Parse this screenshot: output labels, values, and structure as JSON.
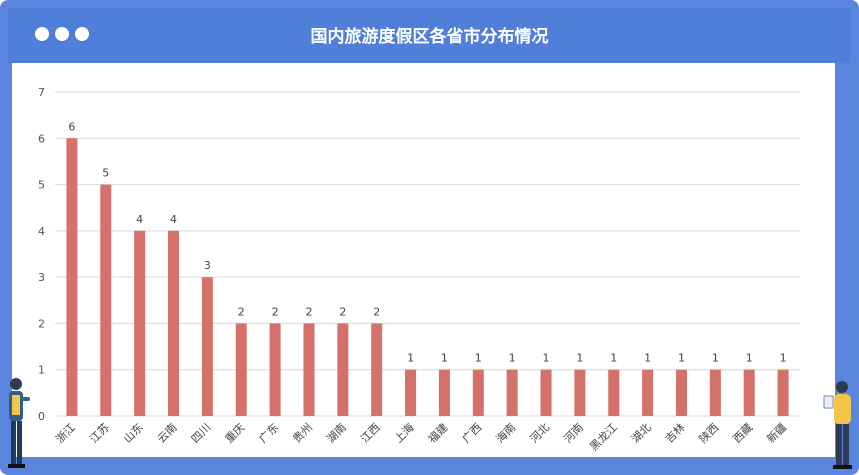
{
  "window": {
    "title": "国内旅游度假区各省市分布情况"
  },
  "chart_data": {
    "type": "bar",
    "categories": [
      "浙江",
      "江苏",
      "山东",
      "云南",
      "四川",
      "重庆",
      "广东",
      "贵州",
      "湖南",
      "江西",
      "上海",
      "福建",
      "广西",
      "海南",
      "河北",
      "河南",
      "黑龙江",
      "湖北",
      "吉林",
      "陕西",
      "西藏",
      "新疆"
    ],
    "values": [
      6,
      5,
      4,
      4,
      3,
      2,
      2,
      2,
      2,
      2,
      1,
      1,
      1,
      1,
      1,
      1,
      1,
      1,
      1,
      1,
      1,
      1
    ],
    "ylim": [
      0,
      7
    ],
    "yticks": [
      0,
      1,
      2,
      3,
      4,
      5,
      6,
      7
    ],
    "grid": true,
    "bar_color": "#d4716b"
  }
}
